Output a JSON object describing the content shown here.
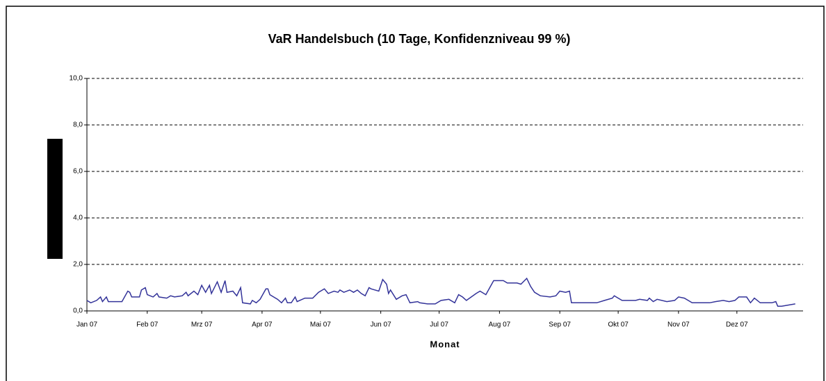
{
  "chart_data": {
    "type": "line",
    "title": "VaR Handelsbuch (10 Tage, Konfidenzniveau 99 %)",
    "x_label": "Monat",
    "xlim": [
      0,
      368
    ],
    "xticks": [
      {
        "value": 0,
        "label": "Jan 07"
      },
      {
        "value": 31,
        "label": "Feb 07"
      },
      {
        "value": 59,
        "label": "Mrz 07"
      },
      {
        "value": 90,
        "label": "Apr 07"
      },
      {
        "value": 120,
        "label": "Mai 07"
      },
      {
        "value": 151,
        "label": "Jun 07"
      },
      {
        "value": 181,
        "label": "Jul 07"
      },
      {
        "value": 212,
        "label": "Aug 07"
      },
      {
        "value": 243,
        "label": "Sep 07"
      },
      {
        "value": 273,
        "label": "Okt 07"
      },
      {
        "value": 304,
        "label": "Nov 07"
      },
      {
        "value": 334,
        "label": "Dez 07"
      }
    ],
    "ylim": [
      0,
      10
    ],
    "yticks": [
      {
        "value": 0,
        "label": "0,0"
      },
      {
        "value": 2,
        "label": "2,0"
      },
      {
        "value": 4,
        "label": "4,0"
      },
      {
        "value": 6,
        "label": "6,0"
      },
      {
        "value": 8,
        "label": "8,0"
      },
      {
        "value": 10,
        "label": "10,0"
      }
    ],
    "grid": true,
    "color": "#333399",
    "x": [
      0,
      2,
      5,
      7,
      8,
      10,
      11,
      18,
      21,
      22,
      23,
      27,
      28,
      30,
      31,
      34,
      36,
      37,
      41,
      43,
      45,
      49,
      51,
      52,
      55,
      57,
      59,
      61,
      63,
      64,
      67,
      69,
      71,
      72,
      75,
      77,
      79,
      80,
      84,
      85,
      87,
      89,
      92,
      93,
      94,
      98,
      100,
      102,
      103,
      105,
      107,
      108,
      112,
      116,
      119,
      122,
      124,
      127,
      129,
      130,
      132,
      135,
      137,
      139,
      141,
      143,
      145,
      146,
      150,
      152,
      154,
      155,
      156,
      159,
      162,
      164,
      166,
      170,
      171,
      175,
      179,
      182,
      186,
      189,
      191,
      193,
      195,
      200,
      202,
      205,
      207,
      209,
      214,
      216,
      221,
      223,
      226,
      228,
      230,
      233,
      238,
      241,
      243,
      246,
      248,
      249,
      257,
      262,
      266,
      270,
      271,
      275,
      282,
      284,
      288,
      289,
      291,
      293,
      298,
      302,
      304,
      307,
      311,
      320,
      323,
      327,
      330,
      333,
      335,
      339,
      341,
      343,
      346,
      352,
      354,
      355,
      357,
      364
    ],
    "values": [
      0.45,
      0.35,
      0.45,
      0.6,
      0.4,
      0.6,
      0.4,
      0.4,
      0.85,
      0.8,
      0.6,
      0.6,
      0.9,
      1.0,
      0.7,
      0.6,
      0.75,
      0.6,
      0.55,
      0.65,
      0.6,
      0.65,
      0.8,
      0.65,
      0.85,
      0.7,
      1.1,
      0.8,
      1.1,
      0.75,
      1.25,
      0.8,
      1.3,
      0.8,
      0.85,
      0.65,
      1.0,
      0.35,
      0.3,
      0.45,
      0.35,
      0.5,
      0.95,
      0.95,
      0.7,
      0.5,
      0.35,
      0.55,
      0.35,
      0.35,
      0.6,
      0.4,
      0.55,
      0.55,
      0.8,
      0.95,
      0.75,
      0.85,
      0.8,
      0.9,
      0.8,
      0.9,
      0.8,
      0.9,
      0.75,
      0.65,
      1.0,
      0.95,
      0.85,
      1.35,
      1.15,
      0.75,
      0.9,
      0.5,
      0.65,
      0.7,
      0.35,
      0.4,
      0.35,
      0.3,
      0.3,
      0.45,
      0.5,
      0.35,
      0.7,
      0.6,
      0.45,
      0.75,
      0.85,
      0.7,
      1.0,
      1.3,
      1.3,
      1.2,
      1.2,
      1.15,
      1.4,
      1.05,
      0.8,
      0.65,
      0.6,
      0.65,
      0.85,
      0.8,
      0.85,
      0.35,
      0.35,
      0.35,
      0.45,
      0.55,
      0.65,
      0.45,
      0.45,
      0.5,
      0.45,
      0.55,
      0.4,
      0.5,
      0.4,
      0.45,
      0.6,
      0.55,
      0.35,
      0.35,
      0.4,
      0.45,
      0.4,
      0.45,
      0.6,
      0.6,
      0.35,
      0.55,
      0.35,
      0.35,
      0.4,
      0.2,
      0.2,
      0.3
    ]
  }
}
